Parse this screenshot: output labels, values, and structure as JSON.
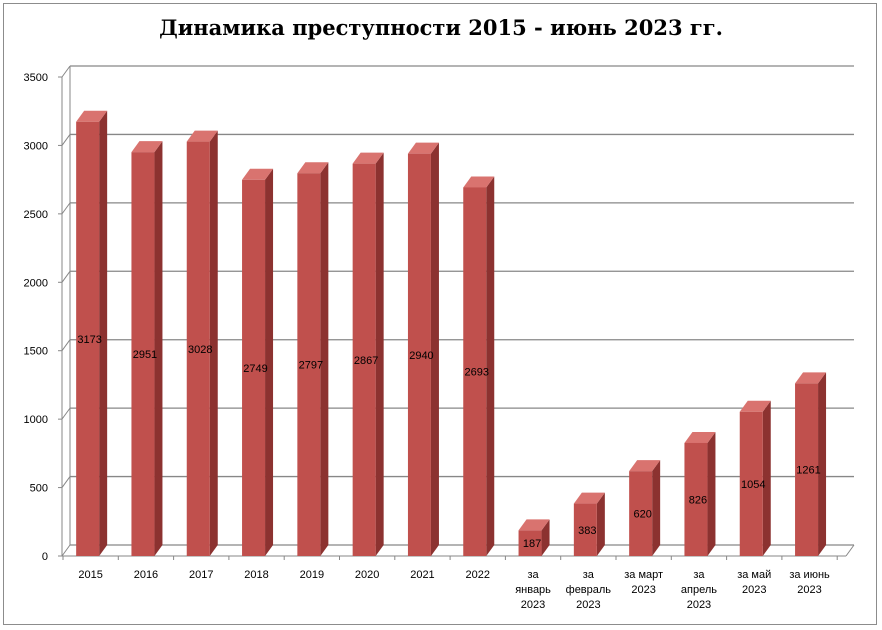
{
  "chart_data": {
    "type": "bar",
    "title": "Динамика преступности 2015 - июнь 2023 гг.",
    "xlabel": "",
    "ylabel": "",
    "categories": [
      "2015",
      "2016",
      "2017",
      "2018",
      "2019",
      "2020",
      "2021",
      "2022",
      "за январь 2023",
      "за февраль 2023",
      "за март 2023",
      "за апрель 2023",
      "за май 2023",
      "за июнь 2023"
    ],
    "category_lines": [
      [
        "2015"
      ],
      [
        "2016"
      ],
      [
        "2017"
      ],
      [
        "2018"
      ],
      [
        "2019"
      ],
      [
        "2020"
      ],
      [
        "2021"
      ],
      [
        "2022"
      ],
      [
        "за",
        "январь",
        "2023"
      ],
      [
        "за",
        "февраль",
        "2023"
      ],
      [
        "за март",
        "2023"
      ],
      [
        "за",
        "апрель",
        "2023"
      ],
      [
        "за май",
        "2023"
      ],
      [
        "за июнь",
        "2023"
      ]
    ],
    "values": [
      3173,
      2951,
      3028,
      2749,
      2797,
      2867,
      2940,
      2693,
      187,
      383,
      620,
      826,
      1054,
      1261
    ],
    "ylim": [
      0,
      3500
    ],
    "yticks": [
      0,
      500,
      1000,
      1500,
      2000,
      2500,
      3000,
      3500
    ],
    "grid": true,
    "legend": "none",
    "colors": {
      "bar_front": "#c0504d",
      "bar_side": "#8c3230",
      "bar_top": "#d9736f",
      "grid": "#878787"
    }
  }
}
